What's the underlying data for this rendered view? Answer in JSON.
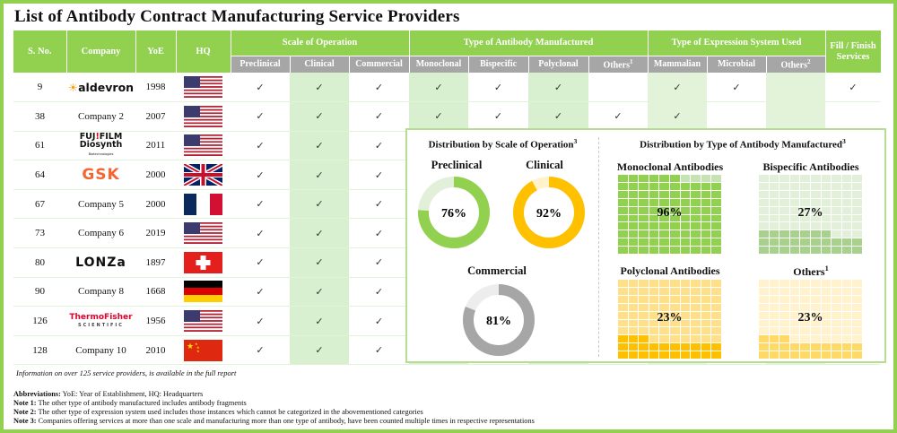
{
  "title": "List of Antibody Contract Manufacturing Service Providers",
  "table": {
    "headers": {
      "sno": "S. No.",
      "company": "Company",
      "yoe": "YoE",
      "hq": "HQ",
      "groups": {
        "scale": "Scale of Operation",
        "antibody": "Type of Antibody Manufactured",
        "expression": "Type of Expression System Used",
        "fill": "Fill / Finish Services"
      },
      "sub": {
        "preclinical": "Preclinical",
        "clinical": "Clinical",
        "commercial": "Commercial",
        "monoclonal": "Monoclonal",
        "bispecific": "Bispecific",
        "polyclonal": "Polyclonal",
        "others1": "Others",
        "others1_sup": "1",
        "mammalian": "Mammalian",
        "microbial": "Microbial",
        "others2": "Others",
        "others2_sup": "2"
      }
    },
    "check_glyph": "✓",
    "rows": [
      {
        "sno": "9",
        "company": "aldevron",
        "company_type": "logo",
        "yoe": "1998",
        "hq": "USA",
        "checks": [
          1,
          1,
          1,
          1,
          1,
          1,
          0,
          1,
          1,
          0,
          1
        ]
      },
      {
        "sno": "38",
        "company": "Company 2",
        "company_type": "text",
        "yoe": "2007",
        "hq": "USA",
        "checks": [
          1,
          1,
          1,
          1,
          1,
          1,
          1,
          1,
          0,
          0,
          0
        ]
      },
      {
        "sno": "61",
        "company": "FUJIFILM Diosynth Biotechnologies",
        "company_type": "logo",
        "yoe": "2011",
        "hq": "USA",
        "checks": [
          1,
          1,
          1
        ]
      },
      {
        "sno": "64",
        "company": "GSK",
        "company_type": "logo",
        "yoe": "2000",
        "hq": "UK",
        "checks": [
          1,
          1,
          1
        ]
      },
      {
        "sno": "67",
        "company": "Company 5",
        "company_type": "text",
        "yoe": "2000",
        "hq": "France",
        "checks": [
          1,
          1,
          1
        ]
      },
      {
        "sno": "73",
        "company": "Company 6",
        "company_type": "text",
        "yoe": "2019",
        "hq": "USA",
        "checks": [
          1,
          1,
          1
        ]
      },
      {
        "sno": "80",
        "company": "Lonza",
        "company_type": "logo",
        "yoe": "1897",
        "hq": "Switzerland",
        "checks": [
          1,
          1,
          1
        ]
      },
      {
        "sno": "90",
        "company": "Company 8",
        "company_type": "text",
        "yoe": "1668",
        "hq": "Germany",
        "checks": [
          1,
          1,
          1
        ]
      },
      {
        "sno": "126",
        "company": "ThermoFisher SCIENTIFIC",
        "company_type": "logo",
        "yoe": "1956",
        "hq": "USA",
        "checks": [
          1,
          1,
          1
        ]
      },
      {
        "sno": "128",
        "company": "Company 10",
        "company_type": "text",
        "yoe": "2010",
        "hq": "China",
        "checks": [
          1,
          1,
          1
        ]
      }
    ]
  },
  "colors": {
    "green": "#92d050",
    "green_light": "#d8f0cf",
    "grey_header": "#a6a6a6",
    "yellow": "#ffc000"
  },
  "chart_data": [
    {
      "type": "pie",
      "variant": "donut",
      "title": "Distribution by Scale of Operation",
      "title_sup": "3",
      "items": [
        {
          "label": "Preclinical",
          "value": 76,
          "display": "76%",
          "color": "#92d050",
          "rest_color": "#e2efd9"
        },
        {
          "label": "Clinical",
          "value": 92,
          "display": "92%",
          "color": "#ffc000",
          "rest_color": "#fff2cc"
        },
        {
          "label": "Commercial",
          "value": 81,
          "display": "81%",
          "color": "#a6a6a6",
          "rest_color": "#ededed"
        }
      ]
    },
    {
      "type": "heatmap",
      "variant": "waffle",
      "title": "Distribution by Type of Antibody Manufactured",
      "title_sup": "3",
      "items": [
        {
          "label": "Monoclonal Antibodies",
          "value": 96,
          "display": "96%",
          "color": "#92d050",
          "rest_color": "#c7e2b3"
        },
        {
          "label": "Bispecific Antibodies",
          "value": 27,
          "display": "27%",
          "color": "#a9d18e",
          "rest_color": "#e2efd9"
        },
        {
          "label": "Polyclonal Antibodies",
          "value": 23,
          "display": "23%",
          "color": "#ffc000",
          "rest_color": "#ffe08a"
        },
        {
          "label": "Others",
          "label_sup": "1",
          "value": 23,
          "display": "23%",
          "color": "#ffd966",
          "rest_color": "#fff2cc"
        }
      ]
    }
  ],
  "footer": {
    "info": "Information on over 125 service providers, is available in the full report",
    "notes": [
      {
        "key": "Abbreviations:",
        "text": " YoE: Year of Establishment, HQ: Headquarters"
      },
      {
        "key": "Note 1:",
        "text": " The other type of antibody manufactured includes antibody fragments"
      },
      {
        "key": "Note 2:",
        "text": " The other type of expression system used includes those instances which cannot be categorized in the abovementioned categories"
      },
      {
        "key": "Note 3:",
        "text": " Companies offering services at more than one scale and manufacturing more than one type of antibody, have been counted multiple times in respective representations"
      }
    ]
  }
}
